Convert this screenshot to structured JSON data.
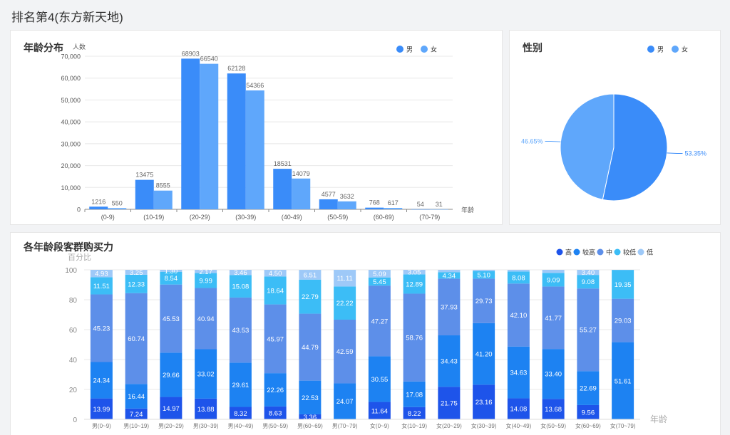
{
  "page": {
    "title": "排名第4(东方新天地)"
  },
  "colors": {
    "male": "#3a8cf9",
    "female": "#5fa7fb",
    "grid": "#e8e8e8",
    "axis": "#999"
  },
  "chart_data": [
    {
      "id": "age",
      "type": "bar",
      "title": "年龄分布",
      "xlabel": "年龄",
      "ylabel": "人数",
      "categories": [
        "(0-9)",
        "(10-19)",
        "(20-29)",
        "(30-39)",
        "(40-49)",
        "(50-59)",
        "(60-69)",
        "(70-79)"
      ],
      "yticks": [
        "0",
        "10,000",
        "20,000",
        "30,000",
        "40,000",
        "50,000",
        "60,000",
        "70,000"
      ],
      "ylim": [
        0,
        70000
      ],
      "legend_position": "top-right",
      "series": [
        {
          "name": "男",
          "color": "#3a8cf9",
          "values": [
            1216,
            13475,
            68903,
            62128,
            18531,
            4577,
            768,
            54
          ]
        },
        {
          "name": "女",
          "color": "#5fa7fb",
          "values": [
            550,
            8555,
            66540,
            54366,
            14079,
            3632,
            617,
            31
          ]
        }
      ]
    },
    {
      "id": "gender",
      "type": "pie",
      "title": "性别",
      "legend_position": "top-right",
      "labels": [
        "男",
        "女"
      ],
      "values": [
        53.35,
        46.65
      ],
      "value_labels": [
        "53.35%",
        "46.65%"
      ],
      "colors": [
        "#3a8cf9",
        "#5fa7fb"
      ]
    },
    {
      "id": "power",
      "type": "bar",
      "stacked": true,
      "title": "各年龄段客群购买力",
      "ylabel": "百分比",
      "xlabel": "年龄",
      "ylim": [
        0,
        100
      ],
      "yticks": [
        "0",
        "20",
        "40",
        "60",
        "80",
        "100"
      ],
      "legend_position": "top-right",
      "categories": [
        "男(0~9)",
        "男(10~19)",
        "男(20~29)",
        "男(30~39)",
        "男(40~49)",
        "男(50~59)",
        "男(60~69)",
        "男(70~79)",
        "女(0~9)",
        "女(10~19)",
        "女(20~29)",
        "女(30~39)",
        "女(40~49)",
        "女(50~59)",
        "女(60~69)",
        "女(70~79)"
      ],
      "series": [
        {
          "name": "高",
          "color": "#1e54ea",
          "values": [
            13.99,
            7.24,
            14.97,
            13.88,
            8.32,
            8.63,
            3.36,
            0,
            11.64,
            8.22,
            21.75,
            23.16,
            14.08,
            13.68,
            9.56,
            0
          ],
          "labels": [
            "13.99",
            "7.24",
            "14.97",
            "13.88",
            "8.32",
            "8.63",
            "3.36",
            "",
            "11.64",
            "8.22",
            "21.75",
            "23.16",
            "14.08",
            "13.68",
            "9.56",
            ""
          ]
        },
        {
          "name": "较高",
          "color": "#1d82f2",
          "values": [
            24.34,
            16.44,
            29.66,
            33.02,
            29.61,
            22.26,
            22.53,
            24.07,
            30.55,
            17.08,
            34.43,
            41.2,
            34.63,
            33.4,
            22.69,
            51.61
          ],
          "labels": [
            "24.34",
            "16.44",
            "29.66",
            "33.02",
            "29.61",
            "22.26",
            "22.53",
            "24.07",
            "30.55",
            "17.08",
            "34.43",
            "41.20",
            "34.63",
            "33.40",
            "22.69",
            "51.61"
          ]
        },
        {
          "name": "中",
          "color": "#5d8fe9",
          "values": [
            45.23,
            60.74,
            45.53,
            40.94,
            43.53,
            45.97,
            44.79,
            42.59,
            47.27,
            58.76,
            37.93,
            29.73,
            42.1,
            41.77,
            55.27,
            29.03
          ],
          "labels": [
            "45.23",
            "60.74",
            "45.53",
            "40.94",
            "43.53",
            "45.97",
            "44.79",
            "42.59",
            "47.27",
            "58.76",
            "37.93",
            "29.73",
            "42.10",
            "41.77",
            "55.27",
            "29.03"
          ]
        },
        {
          "name": "较低",
          "color": "#3cbdf6",
          "values": [
            11.51,
            12.33,
            8.54,
            9.99,
            15.08,
            18.64,
            22.79,
            22.22,
            5.45,
            12.89,
            4.34,
            5.1,
            8.08,
            9.09,
            9.08,
            19.35
          ],
          "labels": [
            "11.51",
            "12.33",
            "8.54",
            "9.99",
            "15.08",
            "18.64",
            "22.79",
            "22.22",
            "5.45",
            "12.89",
            "4.34",
            "5.10",
            "8.08",
            "9.09",
            "9.08",
            "19.35"
          ]
        },
        {
          "name": "低",
          "color": "#9ec9f8",
          "values": [
            4.93,
            3.25,
            1.3,
            2.17,
            3.46,
            4.5,
            6.51,
            11.11,
            5.09,
            3.05,
            1.54,
            0.81,
            1.11,
            2.06,
            3.4,
            0.01
          ],
          "labels": [
            "4.93",
            "3.25",
            "1.30",
            "2.17",
            "3.46",
            "4.50",
            "6.51",
            "11.11",
            "5.09",
            "3.05",
            "",
            "",
            "",
            "",
            "3.40",
            ""
          ]
        }
      ]
    }
  ]
}
